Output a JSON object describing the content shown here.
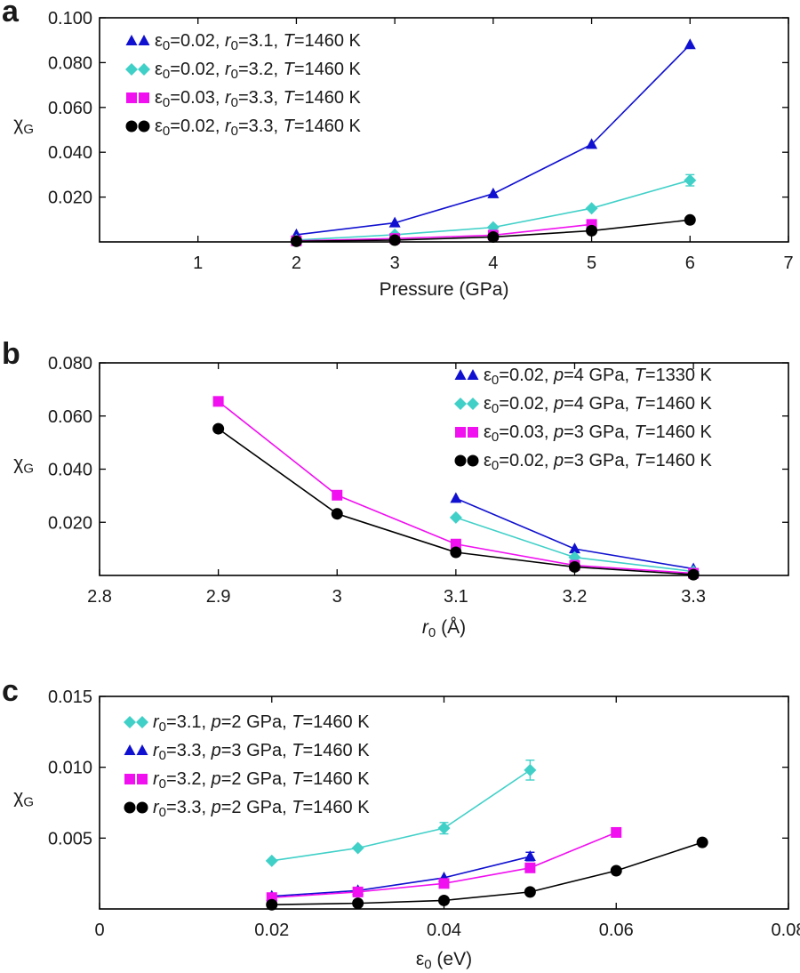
{
  "chart_data": [
    {
      "type": "line",
      "panel_label": "a",
      "xlabel": "Pressure (GPa)",
      "ylabel": "χ",
      "ylabel_sub": "G",
      "xlim": [
        0,
        7
      ],
      "ylim": [
        0,
        0.1
      ],
      "xticks": [
        1,
        2,
        3,
        4,
        5,
        6,
        7
      ],
      "xtick_labels": [
        "1",
        "2",
        "3",
        "4",
        "5",
        "6",
        "7"
      ],
      "yticks": [
        0.02,
        0.04,
        0.06,
        0.08,
        0.1
      ],
      "ytick_labels": [
        "0.020",
        "0.040",
        "0.060",
        "0.080",
        "0.100"
      ],
      "legend_position": "top-left",
      "series": [
        {
          "name": "ε0=0.02, r0=3.1, T=1460 K",
          "label_parts": [
            [
              "ε",
              ""
            ],
            [
              "0",
              "sub"
            ],
            [
              "=0.02, ",
              ""
            ],
            [
              "r",
              "i"
            ],
            [
              "0",
              "sub"
            ],
            [
              "=3.1, ",
              ""
            ],
            [
              "T",
              "i"
            ],
            [
              "=1460 K",
              ""
            ]
          ],
          "marker": "triangle",
          "color": "#1010d0",
          "x": [
            2,
            3,
            4,
            5,
            6
          ],
          "y": [
            0.0032,
            0.0085,
            0.0215,
            0.0435,
            0.088
          ],
          "err": [
            0,
            0,
            0,
            0,
            0
          ]
        },
        {
          "name": "ε0=0.02, r0=3.2, T=1460 K",
          "label_parts": [
            [
              "ε",
              ""
            ],
            [
              "0",
              "sub"
            ],
            [
              "=0.02, ",
              ""
            ],
            [
              "r",
              "i"
            ],
            [
              "0",
              "sub"
            ],
            [
              "=3.2, ",
              ""
            ],
            [
              "T",
              "i"
            ],
            [
              "=1460 K",
              ""
            ]
          ],
          "marker": "diamond",
          "color": "#40d0c8",
          "x": [
            2,
            3,
            4,
            5,
            6
          ],
          "y": [
            0.0008,
            0.0032,
            0.0065,
            0.015,
            0.0275
          ],
          "err": [
            0,
            0,
            0,
            0,
            0.0025
          ]
        },
        {
          "name": "ε0=0.03, r0=3.3, T=1460 K",
          "label_parts": [
            [
              "ε",
              ""
            ],
            [
              "0",
              "sub"
            ],
            [
              "=0.03, ",
              ""
            ],
            [
              "r",
              "i"
            ],
            [
              "0",
              "sub"
            ],
            [
              "=3.3, ",
              ""
            ],
            [
              "T",
              "i"
            ],
            [
              "=1460 K",
              ""
            ]
          ],
          "marker": "square",
          "color": "#f010f0",
          "x": [
            2,
            3,
            4,
            5
          ],
          "y": [
            0.0005,
            0.0015,
            0.003,
            0.0078
          ],
          "err": [
            0,
            0,
            0,
            0
          ]
        },
        {
          "name": "ε0=0.02, r0=3.3, T=1460 K",
          "label_parts": [
            [
              "ε",
              ""
            ],
            [
              "0",
              "sub"
            ],
            [
              "=0.02, ",
              ""
            ],
            [
              "r",
              "i"
            ],
            [
              "0",
              "sub"
            ],
            [
              "=3.3, ",
              ""
            ],
            [
              "T",
              "i"
            ],
            [
              "=1460 K",
              ""
            ]
          ],
          "marker": "circle",
          "color": "#000000",
          "x": [
            2,
            3,
            4,
            5,
            6
          ],
          "y": [
            0.0003,
            0.0008,
            0.0022,
            0.005,
            0.0098
          ],
          "err": [
            0,
            0,
            0,
            0,
            0
          ]
        }
      ]
    },
    {
      "type": "line",
      "panel_label": "b",
      "xlabel": "r0 (Å)",
      "xlabel_parts": [
        [
          "r",
          "i"
        ],
        [
          "0",
          "sub"
        ],
        [
          " (Å)",
          ""
        ]
      ],
      "ylabel": "χ",
      "ylabel_sub": "G",
      "xlim": [
        2.8,
        3.38
      ],
      "ylim": [
        0,
        0.08
      ],
      "xticks": [
        2.8,
        2.9,
        3.0,
        3.1,
        3.2,
        3.3
      ],
      "xtick_labels": [
        "2.8",
        "2.9",
        "3",
        "3.1",
        "3.2",
        "3.3"
      ],
      "yticks": [
        0.02,
        0.04,
        0.06,
        0.08
      ],
      "ytick_labels": [
        "0.020",
        "0.040",
        "0.060",
        "0.080"
      ],
      "legend_position": "top-right",
      "series": [
        {
          "name": "ε0=0.02, p=4 GPa, T=1330 K",
          "label_parts": [
            [
              "ε",
              ""
            ],
            [
              "0",
              "sub"
            ],
            [
              "=0.02, ",
              ""
            ],
            [
              "p",
              "i"
            ],
            [
              "=4 GPa, ",
              ""
            ],
            [
              "T",
              "i"
            ],
            [
              "=1330 K",
              ""
            ]
          ],
          "marker": "triangle",
          "color": "#1010d0",
          "x": [
            3.1,
            3.2,
            3.3
          ],
          "y": [
            0.029,
            0.01,
            0.0025
          ],
          "err": [
            0,
            0,
            0
          ]
        },
        {
          "name": "ε0=0.02, p=4 GPa, T=1460 K",
          "label_parts": [
            [
              "ε",
              ""
            ],
            [
              "0",
              "sub"
            ],
            [
              "=0.02, ",
              ""
            ],
            [
              "p",
              "i"
            ],
            [
              "=4 GPa, ",
              ""
            ],
            [
              "T",
              "i"
            ],
            [
              "=1460 K",
              ""
            ]
          ],
          "marker": "diamond",
          "color": "#40d0c8",
          "x": [
            3.1,
            3.2,
            3.3
          ],
          "y": [
            0.0218,
            0.0068,
            0.0015
          ],
          "err": [
            0,
            0,
            0
          ]
        },
        {
          "name": "ε0=0.03, p=3 GPa, T=1460 K",
          "label_parts": [
            [
              "ε",
              ""
            ],
            [
              "0",
              "sub"
            ],
            [
              "=0.03, ",
              ""
            ],
            [
              "p",
              "i"
            ],
            [
              "=3 GPa, ",
              ""
            ],
            [
              "T",
              "i"
            ],
            [
              "=1460 K",
              ""
            ]
          ],
          "marker": "square",
          "color": "#f010f0",
          "x": [
            2.9,
            3.0,
            3.1,
            3.2,
            3.3
          ],
          "y": [
            0.0655,
            0.0302,
            0.0118,
            0.0038,
            0.0008
          ],
          "err": [
            0,
            0,
            0,
            0,
            0
          ]
        },
        {
          "name": "ε0=0.02, p=3 GPa, T=1460 K",
          "label_parts": [
            [
              "ε",
              ""
            ],
            [
              "0",
              "sub"
            ],
            [
              "=0.02, ",
              ""
            ],
            [
              "p",
              "i"
            ],
            [
              "=3 GPa, ",
              ""
            ],
            [
              "T",
              "i"
            ],
            [
              "=1460 K",
              ""
            ]
          ],
          "marker": "circle",
          "color": "#000000",
          "x": [
            2.9,
            3.0,
            3.1,
            3.2,
            3.3
          ],
          "y": [
            0.0552,
            0.0232,
            0.0087,
            0.0032,
            0.0003
          ],
          "err": [
            0,
            0,
            0,
            0,
            0
          ]
        }
      ]
    },
    {
      "type": "line",
      "panel_label": "c",
      "xlabel": "ε0 (eV)",
      "xlabel_parts": [
        [
          "ε",
          ""
        ],
        [
          "0",
          "sub"
        ],
        [
          " (eV)",
          ""
        ]
      ],
      "ylabel": "χ",
      "ylabel_sub": "G",
      "xlim": [
        0,
        0.08
      ],
      "ylim": [
        0,
        0.015
      ],
      "xticks": [
        0,
        0.02,
        0.04,
        0.06,
        0.08
      ],
      "xtick_labels": [
        "0",
        "0.02",
        "0.04",
        "0.06",
        "0.08"
      ],
      "yticks": [
        0.005,
        0.01,
        0.015
      ],
      "ytick_labels": [
        "0.005",
        "0.010",
        "0.015"
      ],
      "legend_position": "top-left",
      "series": [
        {
          "name": "r0=3.1, p=2 GPa, T=1460 K",
          "label_parts": [
            [
              "r",
              "i"
            ],
            [
              "0",
              "sub"
            ],
            [
              "=3.1, ",
              ""
            ],
            [
              "p",
              "i"
            ],
            [
              "=2 GPa, ",
              ""
            ],
            [
              "T",
              "i"
            ],
            [
              "=1460 K",
              ""
            ]
          ],
          "marker": "diamond",
          "color": "#40d0c8",
          "x": [
            0.02,
            0.03,
            0.04,
            0.05
          ],
          "y": [
            0.0034,
            0.0043,
            0.0057,
            0.0098
          ],
          "err": [
            0,
            0,
            0.0004,
            0.0007
          ]
        },
        {
          "name": "r0=3.3, p=3 GPa, T=1460 K",
          "label_parts": [
            [
              "r",
              "i"
            ],
            [
              "0",
              "sub"
            ],
            [
              "=3.3, ",
              ""
            ],
            [
              "p",
              "i"
            ],
            [
              "=3 GPa, ",
              ""
            ],
            [
              "T",
              "i"
            ],
            [
              "=1460 K",
              ""
            ]
          ],
          "marker": "triangle",
          "color": "#1010d0",
          "x": [
            0.02,
            0.03,
            0.04,
            0.05
          ],
          "y": [
            0.0009,
            0.0013,
            0.0022,
            0.0037
          ],
          "err": [
            0,
            0,
            0,
            0.0003
          ]
        },
        {
          "name": "r0=3.2, p=2 GPa, T=1460 K",
          "label_parts": [
            [
              "r",
              "i"
            ],
            [
              "0",
              "sub"
            ],
            [
              "=3.2, ",
              ""
            ],
            [
              "p",
              "i"
            ],
            [
              "=2 GPa, ",
              ""
            ],
            [
              "T",
              "i"
            ],
            [
              "=1460 K",
              ""
            ]
          ],
          "marker": "square",
          "color": "#f010f0",
          "x": [
            0.02,
            0.03,
            0.04,
            0.05,
            0.06
          ],
          "y": [
            0.0008,
            0.0012,
            0.0018,
            0.0029,
            0.0054
          ],
          "err": [
            0,
            0,
            0,
            0,
            0.0003
          ]
        },
        {
          "name": "r0=3.3, p=2 GPa, T=1460 K",
          "label_parts": [
            [
              "r",
              "i"
            ],
            [
              "0",
              "sub"
            ],
            [
              "=3.3, ",
              ""
            ],
            [
              "p",
              "i"
            ],
            [
              "=2 GPa, ",
              ""
            ],
            [
              "T",
              "i"
            ],
            [
              "=1460 K",
              ""
            ]
          ],
          "marker": "circle",
          "color": "#000000",
          "x": [
            0.02,
            0.03,
            0.04,
            0.05,
            0.06,
            0.07
          ],
          "y": [
            0.0003,
            0.0004,
            0.0006,
            0.0012,
            0.0027,
            0.0047
          ],
          "err": [
            0,
            0,
            0,
            0,
            0,
            0
          ]
        }
      ]
    }
  ]
}
